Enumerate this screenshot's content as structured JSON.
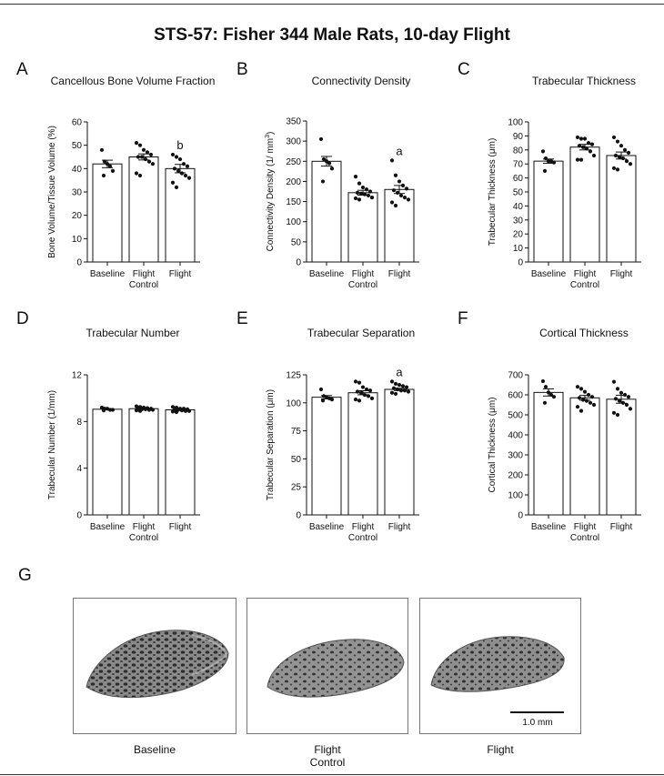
{
  "figure_title": "STS-57: Fisher 344 Male Rats, 10-day Flight",
  "chart_data": [
    {
      "type": "bar",
      "panel": "A",
      "title": "Cancellous Bone Volume Fraction",
      "ylabel": "Bone Volume/Tissue Volume (%)",
      "ylim": [
        0,
        60
      ],
      "yticks": [
        0,
        10,
        20,
        30,
        40,
        50,
        60
      ],
      "categories": [
        "Baseline",
        "Flight\nControl",
        "Flight"
      ],
      "values": [
        42,
        45,
        40
      ],
      "sem": [
        1.6,
        1.3,
        1.8
      ],
      "points": [
        [
          48,
          43,
          42,
          41,
          39,
          37
        ],
        [
          51,
          50,
          48,
          47,
          46,
          45,
          45,
          44,
          43,
          42,
          38,
          37
        ],
        [
          46,
          45,
          44,
          42,
          41,
          40,
          39,
          38,
          37,
          36,
          34,
          32
        ]
      ],
      "significance": [
        "",
        "",
        "b"
      ]
    },
    {
      "type": "bar",
      "panel": "B",
      "title": "Connectivity Density",
      "ylabel": "Connectivity Density (1/ mm³)",
      "ylim": [
        0,
        350
      ],
      "yticks": [
        0,
        50,
        100,
        150,
        200,
        250,
        300,
        350
      ],
      "categories": [
        "Baseline",
        "Flight\nControl",
        "Flight"
      ],
      "values": [
        250,
        172,
        180
      ],
      "sem": [
        12,
        6,
        10
      ],
      "points": [
        [
          305,
          255,
          250,
          245,
          232,
          200
        ],
        [
          212,
          195,
          185,
          180,
          175,
          172,
          170,
          168,
          165,
          160,
          158,
          155
        ],
        [
          252,
          215,
          200,
          190,
          182,
          178,
          172,
          165,
          160,
          155,
          148,
          140
        ]
      ],
      "significance": [
        "",
        "",
        "a"
      ]
    },
    {
      "type": "bar",
      "panel": "C",
      "title": "Trabecular Thickness",
      "ylabel": "Trabecular Thickness (μm)",
      "ylim": [
        0,
        100
      ],
      "yticks": [
        0,
        10,
        20,
        30,
        40,
        50,
        60,
        70,
        80,
        90,
        100
      ],
      "categories": [
        "Baseline",
        "Flight\nControl",
        "Flight"
      ],
      "values": [
        72,
        82,
        76
      ],
      "sem": [
        1.5,
        2.0,
        2.5
      ],
      "points": [
        [
          79,
          74,
          72,
          72,
          71,
          65
        ],
        [
          89,
          88,
          88,
          85,
          84,
          83,
          82,
          81,
          79,
          76,
          73,
          73
        ],
        [
          89,
          86,
          83,
          80,
          78,
          76,
          75,
          74,
          72,
          70,
          67,
          66
        ]
      ],
      "significance": [
        "",
        "",
        ""
      ]
    },
    {
      "type": "bar",
      "panel": "D",
      "title": "Trabecular Number",
      "ylabel": "Trabecular Number (1/mm)",
      "ylim": [
        0,
        12
      ],
      "yticks": [
        0,
        4,
        8,
        12
      ],
      "categories": [
        "Baseline",
        "Flight\nControl",
        "Flight"
      ],
      "values": [
        9.05,
        9.1,
        9.0
      ],
      "sem": [
        0.05,
        0.04,
        0.05
      ],
      "points": [
        [
          9.2,
          9.1,
          9.1,
          9.0,
          9.0,
          8.95
        ],
        [
          9.3,
          9.25,
          9.2,
          9.15,
          9.1,
          9.1,
          9.05,
          9.05,
          9.0,
          9.0,
          8.95,
          8.9
        ],
        [
          9.25,
          9.2,
          9.1,
          9.1,
          9.05,
          9.0,
          9.0,
          8.95,
          8.9,
          8.9,
          8.85,
          8.8
        ]
      ],
      "significance": [
        "",
        "",
        ""
      ]
    },
    {
      "type": "bar",
      "panel": "E",
      "title": "Trabecular Separation",
      "ylabel": "Trabecular Separation (μm)",
      "ylim": [
        0,
        125
      ],
      "yticks": [
        0,
        25,
        50,
        75,
        100,
        125
      ],
      "categories": [
        "Baseline",
        "Flight\nControl",
        "Flight"
      ],
      "values": [
        105,
        109,
        112
      ],
      "sem": [
        1.5,
        1.8,
        1.0
      ],
      "points": [
        [
          112,
          106,
          105,
          104,
          103,
          102
        ],
        [
          119,
          118,
          114,
          112,
          111,
          110,
          109,
          107,
          106,
          104,
          103,
          102
        ],
        [
          119,
          117,
          116,
          115,
          114,
          113,
          112,
          111,
          111,
          110,
          109,
          108
        ]
      ],
      "significance": [
        "",
        "",
        "a"
      ]
    },
    {
      "type": "bar",
      "panel": "F",
      "title": "Cortical Thickness",
      "ylabel": "Cortical Thickness (μm)",
      "ylim": [
        0,
        700
      ],
      "yticks": [
        0,
        100,
        200,
        300,
        400,
        500,
        600,
        700
      ],
      "categories": [
        "Baseline",
        "Flight\nControl",
        "Flight"
      ],
      "values": [
        612,
        585,
        578
      ],
      "sem": [
        18,
        12,
        20
      ],
      "points": [
        [
          668,
          640,
          612,
          600,
          590,
          560
        ],
        [
          640,
          630,
          615,
          600,
          590,
          585,
          575,
          570,
          560,
          550,
          540,
          520
        ],
        [
          665,
          630,
          610,
          600,
          590,
          580,
          570,
          560,
          550,
          530,
          510,
          500
        ]
      ],
      "significance": [
        "",
        "",
        ""
      ]
    }
  ],
  "micro_ct": {
    "panel": "G",
    "images": [
      {
        "caption": "Baseline"
      },
      {
        "caption": "Flight\nControl"
      },
      {
        "caption": "Flight"
      }
    ],
    "scale_bar_label": "1.0 mm"
  }
}
